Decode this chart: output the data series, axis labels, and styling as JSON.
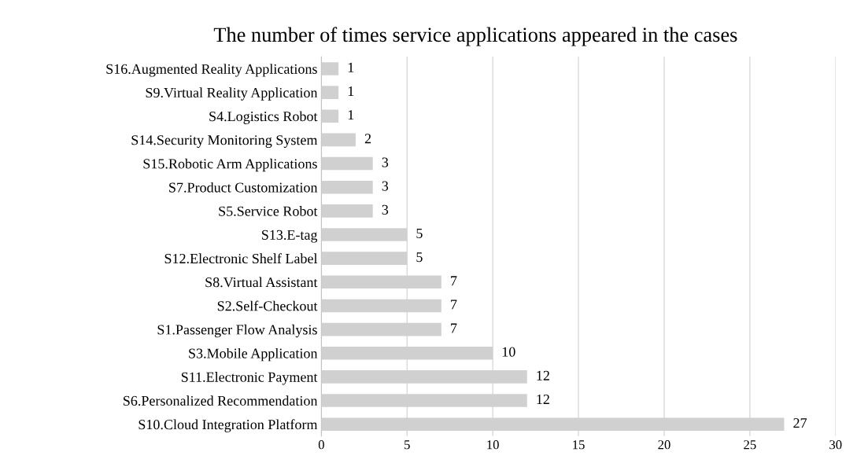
{
  "chart_data": {
    "type": "bar",
    "orientation": "horizontal",
    "title": "The number of times service applications appeared in the cases",
    "categories": [
      "S16.Augmented Reality Applications",
      "S9.Virtual Reality Application",
      "S4.Logistics Robot",
      "S14.Security Monitoring System",
      "S15.Robotic Arm Applications",
      "S7.Product Customization",
      "S5.Service Robot",
      "S13.E-tag",
      "S12.Electronic Shelf Label",
      "S8.Virtual Assistant",
      "S2.Self-Checkout",
      "S1.Passenger Flow Analysis",
      "S3.Mobile Application",
      "S11.Electronic Payment",
      "S6.Personalized Recommendation",
      "S10.Cloud Integration Platform"
    ],
    "values": [
      1,
      1,
      1,
      2,
      3,
      3,
      3,
      5,
      5,
      7,
      7,
      7,
      10,
      12,
      12,
      27
    ],
    "color": "#d0d0d0",
    "xlim": [
      0,
      30
    ],
    "xticks": [
      0,
      5,
      10,
      15,
      20,
      25,
      30
    ],
    "grid": "x",
    "data_labels": true
  }
}
